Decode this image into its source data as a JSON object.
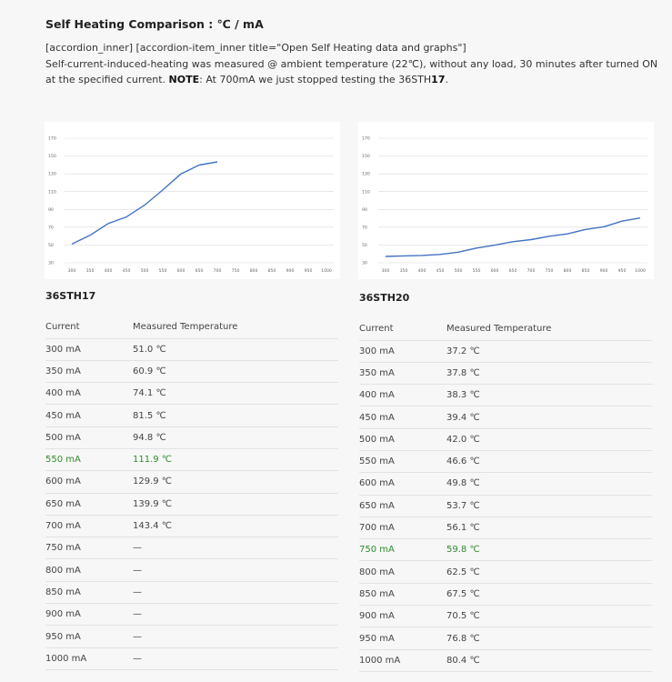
{
  "title": "Self Heating Comparison : ℃ / mA",
  "intro": {
    "shortcode": "[accordion_inner] [accordion-item_inner title=\"Open Self Heating data and graphs\"]",
    "line_main": "Self-current-induced-heating was measured @ ambient temperature (22℃), without any load, 30 minutes after turned ON at the specified current. ",
    "note_label": "NOTE",
    "note_text": ": At 700mA we just stopped testing the 36STH",
    "note_model_suffix": "17",
    "note_end": "."
  },
  "colors": {
    "line": "#4472c4",
    "highlight": "#2e8b2e"
  },
  "chart_data": [
    {
      "type": "line",
      "title": "",
      "xlabel": "",
      "ylabel": "",
      "x_ticks": [
        300,
        350,
        400,
        450,
        500,
        550,
        600,
        650,
        700,
        750,
        800,
        850,
        900,
        950,
        1000
      ],
      "y_ticks": [
        30,
        50,
        70,
        90,
        110,
        130,
        150,
        170
      ],
      "ylim": [
        30,
        170
      ],
      "xlim": [
        300,
        1000
      ],
      "grid": true,
      "series": [
        {
          "x": [
            300,
            350,
            400,
            450,
            500,
            550,
            600,
            650,
            700
          ],
          "values": [
            51.0,
            60.9,
            74.1,
            81.5,
            94.8,
            111.9,
            129.9,
            139.9,
            143.4
          ]
        }
      ]
    },
    {
      "type": "line",
      "title": "",
      "xlabel": "",
      "ylabel": "",
      "x_ticks": [
        300,
        350,
        400,
        450,
        500,
        550,
        600,
        650,
        700,
        750,
        800,
        850,
        900,
        950,
        1000
      ],
      "y_ticks": [
        30,
        50,
        70,
        90,
        110,
        130,
        150,
        170
      ],
      "ylim": [
        30,
        170
      ],
      "xlim": [
        300,
        1000
      ],
      "grid": true,
      "series": [
        {
          "x": [
            300,
            350,
            400,
            450,
            500,
            550,
            600,
            650,
            700,
            750,
            800,
            850,
            900,
            950,
            1000
          ],
          "values": [
            37.2,
            37.8,
            38.3,
            39.4,
            42.0,
            46.6,
            49.8,
            53.7,
            56.1,
            59.8,
            62.5,
            67.5,
            70.5,
            76.8,
            80.4
          ]
        }
      ]
    }
  ],
  "tables": [
    {
      "model": "36STH17",
      "col_current": "Current",
      "col_temp": "Measured Temperature",
      "highlight_index": 5,
      "rows": [
        {
          "current": "300 mA",
          "temp": "51.0 ℃"
        },
        {
          "current": "350 mA",
          "temp": "60.9 ℃"
        },
        {
          "current": "400 mA",
          "temp": "74.1 ℃"
        },
        {
          "current": "450 mA",
          "temp": "81.5 ℃"
        },
        {
          "current": "500 mA",
          "temp": "94.8 ℃"
        },
        {
          "current": "550 mA",
          "temp": "111.9 ℃"
        },
        {
          "current": "600 mA",
          "temp": "129.9 ℃"
        },
        {
          "current": "650 mA",
          "temp": "139.9 ℃"
        },
        {
          "current": "700 mA",
          "temp": "143.4 ℃"
        },
        {
          "current": "750 mA",
          "temp": "—"
        },
        {
          "current": "800 mA",
          "temp": "—"
        },
        {
          "current": "850 mA",
          "temp": "—"
        },
        {
          "current": "900 mA",
          "temp": "—"
        },
        {
          "current": "950 mA",
          "temp": "—"
        },
        {
          "current": "1000 mA",
          "temp": "—"
        }
      ]
    },
    {
      "model": "36STH20",
      "col_current": "Current",
      "col_temp": "Measured Temperature",
      "highlight_index": 9,
      "rows": [
        {
          "current": "300 mA",
          "temp": "37.2 ℃"
        },
        {
          "current": "350 mA",
          "temp": "37.8 ℃"
        },
        {
          "current": "400 mA",
          "temp": "38.3 ℃"
        },
        {
          "current": "450 mA",
          "temp": "39.4 ℃"
        },
        {
          "current": "500 mA",
          "temp": "42.0 ℃"
        },
        {
          "current": "550 mA",
          "temp": "46.6 ℃"
        },
        {
          "current": "600 mA",
          "temp": "49.8 ℃"
        },
        {
          "current": "650 mA",
          "temp": "53.7 ℃"
        },
        {
          "current": "700 mA",
          "temp": "56.1 ℃"
        },
        {
          "current": "750 mA",
          "temp": "59.8 ℃"
        },
        {
          "current": "800 mA",
          "temp": "62.5 ℃"
        },
        {
          "current": "850 mA",
          "temp": "67.5 ℃"
        },
        {
          "current": "900 mA",
          "temp": "70.5 ℃"
        },
        {
          "current": "950 mA",
          "temp": "76.8 ℃"
        },
        {
          "current": "1000 mA",
          "temp": "80.4 ℃"
        }
      ]
    }
  ]
}
